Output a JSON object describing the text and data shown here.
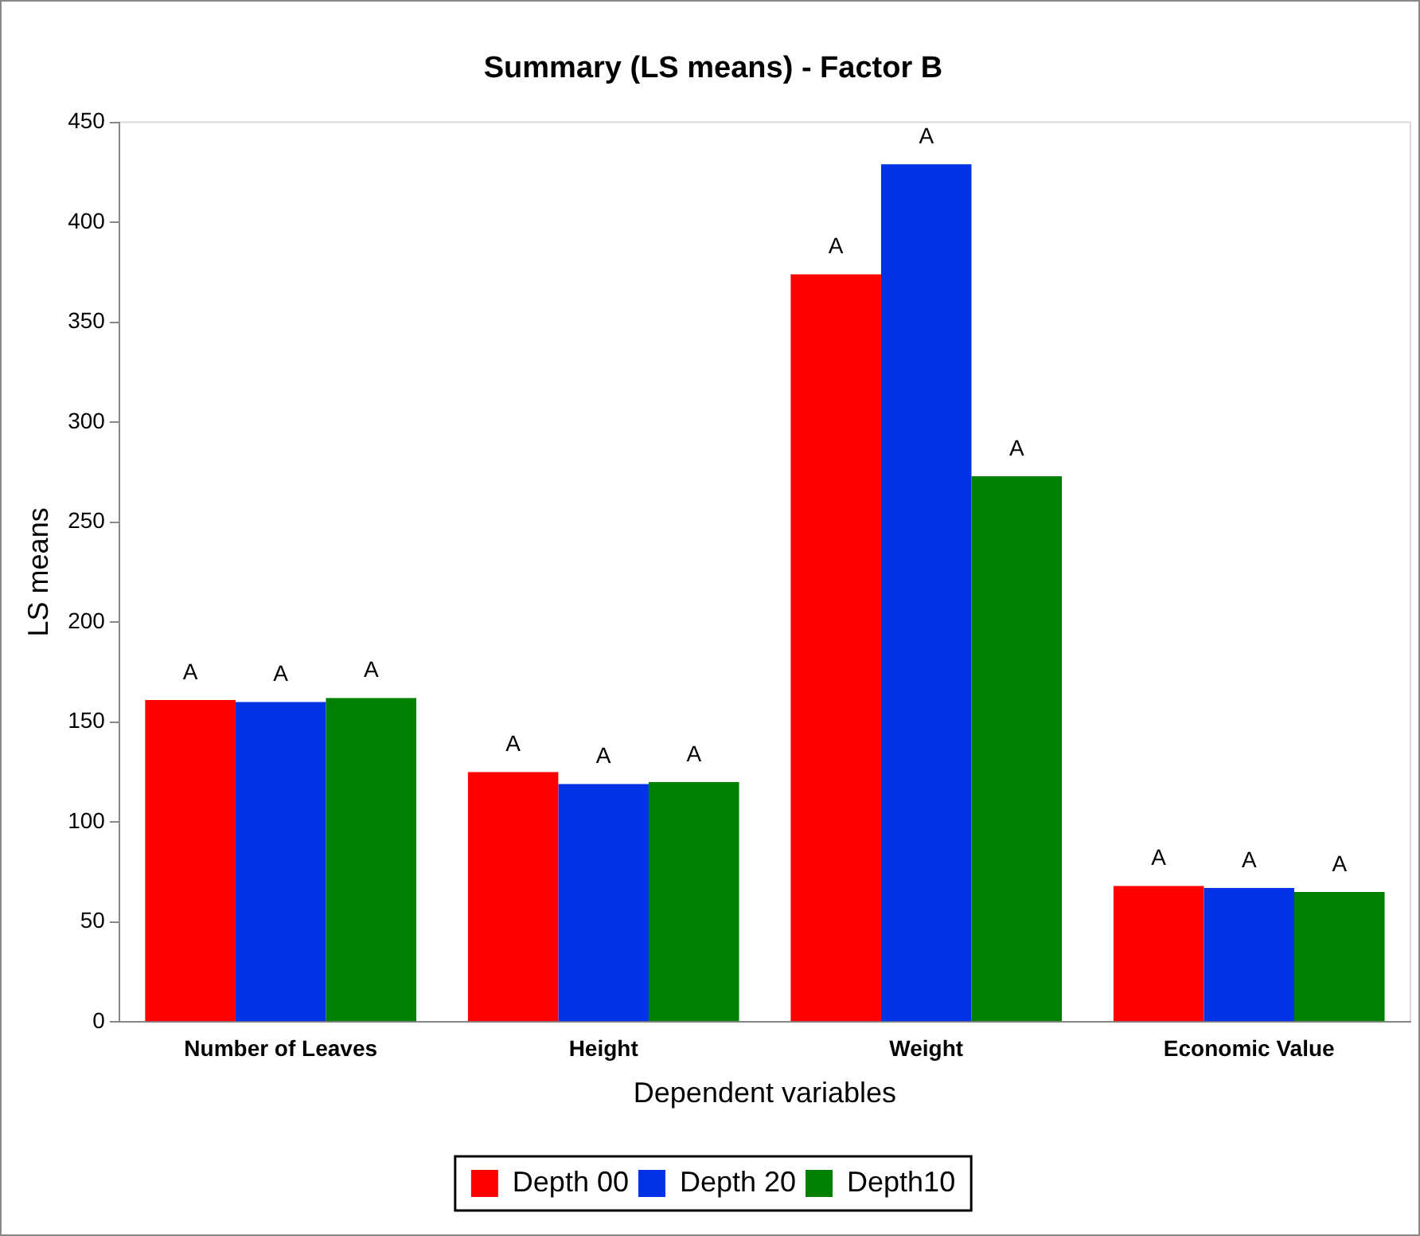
{
  "chart_data": {
    "type": "bar",
    "title": "Summary (LS means) - Factor B",
    "xlabel": "Dependent variables",
    "ylabel": "LS means",
    "categories": [
      "Number of Leaves",
      "Height",
      "Weight",
      "Economic Value"
    ],
    "series": [
      {
        "name": "Depth 00",
        "color": "#ff0000",
        "values": [
          161,
          125,
          374,
          68
        ],
        "value_labels": [
          "A",
          "A",
          "A",
          "A"
        ]
      },
      {
        "name": "Depth 20",
        "color": "#0033e6",
        "values": [
          160,
          119,
          429,
          67
        ],
        "value_labels": [
          "A",
          "A",
          "A",
          "A"
        ]
      },
      {
        "name": "Depth10",
        "color": "#008000",
        "values": [
          162,
          120,
          273,
          65
        ],
        "value_labels": [
          "A",
          "A",
          "A",
          "A"
        ]
      }
    ],
    "ylim": [
      0,
      450
    ],
    "yticks": [
      0,
      50,
      100,
      150,
      200,
      250,
      300,
      350,
      400,
      450
    ],
    "grid": false,
    "legend": "bottom"
  }
}
